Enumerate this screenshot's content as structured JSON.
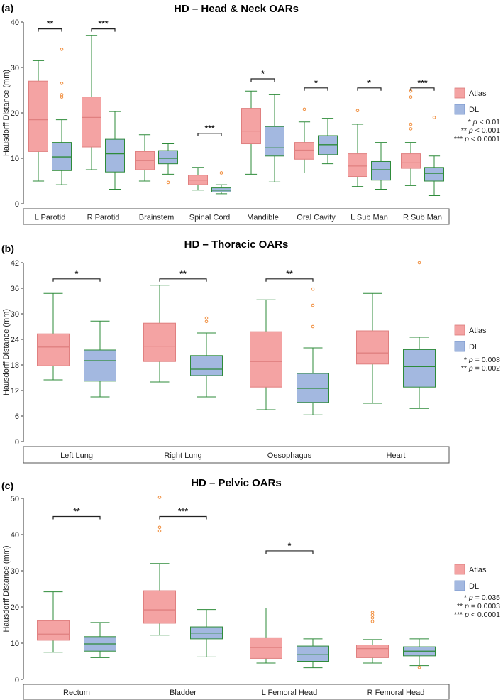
{
  "chart_data": [
    {
      "type": "box",
      "panel_label": "(a)",
      "title": "HD – Head & Neck OARs",
      "ylabel": "Hausdorff Distance (mm)",
      "ylim": [
        0,
        40
      ],
      "yticks": [
        "0",
        "10",
        "20",
        "30",
        "40"
      ],
      "legend": [
        "Atlas",
        "DL"
      ],
      "legend_colors": [
        "#f4a3a3",
        "#a3b8e0"
      ],
      "notes": [
        {
          "stars": "*",
          "p": "p",
          "rest": " < 0.01"
        },
        {
          "stars": "**",
          "p": "p",
          "rest": " < 0.001"
        },
        {
          "stars": "***",
          "p": "p",
          "rest": " < 0.0001"
        }
      ],
      "categories": [
        "L Parotid",
        "R Parotid",
        "Brainstem",
        "Spinal Cord",
        "Mandible",
        "Oral Cavity",
        "L Sub Man",
        "R Sub Man"
      ],
      "series": [
        {
          "name": "Atlas",
          "boxes": [
            {
              "min": 5,
              "q1": 11.5,
              "med": 18.5,
              "q3": 27,
              "max": 31.5,
              "out": []
            },
            {
              "min": 7.5,
              "q1": 12.5,
              "med": 19,
              "q3": 23.5,
              "max": 37,
              "out": []
            },
            {
              "min": 5,
              "q1": 7.5,
              "med": 9.5,
              "q3": 11.5,
              "max": 15.2,
              "out": []
            },
            {
              "min": 3,
              "q1": 4.2,
              "med": 5.2,
              "q3": 6.3,
              "max": 8,
              "out": []
            },
            {
              "min": 6.5,
              "q1": 13.2,
              "med": 16,
              "q3": 21,
              "max": 24.8,
              "out": []
            },
            {
              "min": 6.8,
              "q1": 9.8,
              "med": 11.8,
              "q3": 13.5,
              "max": 18,
              "out": [
                20.8
              ]
            },
            {
              "min": 3.8,
              "q1": 6,
              "med": 8.3,
              "q3": 11,
              "max": 17.5,
              "out": [
                20.5
              ]
            },
            {
              "min": 4,
              "q1": 7.8,
              "med": 9,
              "q3": 11,
              "max": 13.5,
              "out": [
                16.5,
                17.5,
                23.5,
                24.8
              ]
            }
          ]
        },
        {
          "name": "DL",
          "boxes": [
            {
              "min": 4.2,
              "q1": 7.3,
              "med": 10.3,
              "q3": 13.5,
              "max": 18.5,
              "out": [
                23.5,
                24,
                26.5,
                34
              ]
            },
            {
              "min": 3.2,
              "q1": 7,
              "med": 11,
              "q3": 14.2,
              "max": 20.3,
              "out": []
            },
            {
              "min": 6.5,
              "q1": 8.8,
              "med": 10,
              "q3": 11.7,
              "max": 13.2,
              "out": [
                4.7
              ]
            },
            {
              "min": 2.2,
              "q1": 2.6,
              "med": 3,
              "q3": 3.5,
              "max": 4.2,
              "out": [
                6.8
              ]
            },
            {
              "min": 4.8,
              "q1": 10.5,
              "med": 12.3,
              "q3": 17,
              "max": 24,
              "out": []
            },
            {
              "min": 8.8,
              "q1": 10.8,
              "med": 13,
              "q3": 15,
              "max": 18.8,
              "out": []
            },
            {
              "min": 3.2,
              "q1": 5.2,
              "med": 7.5,
              "q3": 9.3,
              "max": 13.5,
              "out": []
            },
            {
              "min": 1.8,
              "q1": 5,
              "med": 6.7,
              "q3": 8,
              "max": 10.5,
              "out": [
                19
              ]
            }
          ]
        }
      ],
      "brackets": [
        {
          "category": 0,
          "label": "**"
        },
        {
          "category": 1,
          "label": "***"
        },
        {
          "category": 3,
          "label": "***"
        },
        {
          "category": 4,
          "label": "*"
        },
        {
          "category": 5,
          "label": "*"
        },
        {
          "category": 6,
          "label": "*"
        },
        {
          "category": 7,
          "label": "***"
        }
      ]
    },
    {
      "type": "box",
      "panel_label": "(b)",
      "title": "HD – Thoracic OARs",
      "ylabel": "Hausdorff Distance (mm)",
      "ylim": [
        0,
        42
      ],
      "yticks": [
        "0",
        "6",
        "12",
        "18",
        "24",
        "30",
        "36",
        "42"
      ],
      "legend": [
        "Atlas",
        "DL"
      ],
      "legend_colors": [
        "#f4a3a3",
        "#a3b8e0"
      ],
      "notes": [
        {
          "stars": "*",
          "p": "p",
          "rest": " = 0.008"
        },
        {
          "stars": "**",
          "p": "p",
          "rest": " = 0.002"
        }
      ],
      "categories": [
        "Left Lung",
        "Right Lung",
        "Oesophagus",
        "Heart"
      ],
      "series": [
        {
          "name": "Atlas",
          "boxes": [
            {
              "min": 14.5,
              "q1": 17.8,
              "med": 22.2,
              "q3": 25.3,
              "max": 34.8,
              "out": []
            },
            {
              "min": 14,
              "q1": 18.8,
              "med": 22.4,
              "q3": 27.8,
              "max": 36.7,
              "out": []
            },
            {
              "min": 7.5,
              "q1": 12.8,
              "med": 18.8,
              "q3": 25.8,
              "max": 33.3,
              "out": []
            },
            {
              "min": 9,
              "q1": 18.2,
              "med": 20.8,
              "q3": 26,
              "max": 34.8,
              "out": []
            }
          ]
        },
        {
          "name": "DL",
          "boxes": [
            {
              "min": 10.5,
              "q1": 14.2,
              "med": 19,
              "q3": 21.5,
              "max": 28.3,
              "out": []
            },
            {
              "min": 10.5,
              "q1": 15.5,
              "med": 17,
              "q3": 20.2,
              "max": 25.5,
              "out": [
                28.2,
                29
              ]
            },
            {
              "min": 6.3,
              "q1": 9.2,
              "med": 12.5,
              "q3": 16,
              "max": 22,
              "out": [
                27,
                32,
                35.8
              ]
            },
            {
              "min": 7.8,
              "q1": 12.8,
              "med": 17.6,
              "q3": 21.6,
              "max": 24.5,
              "out": [
                42
              ]
            }
          ]
        }
      ],
      "brackets": [
        {
          "category": 0,
          "label": "*"
        },
        {
          "category": 1,
          "label": "**"
        },
        {
          "category": 2,
          "label": "**"
        }
      ]
    },
    {
      "type": "box",
      "panel_label": "(c)",
      "title": "HD – Pelvic OARs",
      "ylabel": "Hausdorff Distance (mm)",
      "ylim": [
        0,
        50
      ],
      "yticks": [
        "0",
        "10",
        "20",
        "30",
        "40",
        "50"
      ],
      "legend": [
        "Atlas",
        "DL"
      ],
      "legend_colors": [
        "#f4a3a3",
        "#a3b8e0"
      ],
      "notes": [
        {
          "stars": "*",
          "p": "p",
          "rest": " = 0.035"
        },
        {
          "stars": "**",
          "p": "p",
          "rest": " = 0.0003"
        },
        {
          "stars": "***",
          "p": "p",
          "rest": " < 0.0001"
        }
      ],
      "categories": [
        "Rectum",
        "Bladder",
        "L Femoral Head",
        "R Femoral Head"
      ],
      "series": [
        {
          "name": "Atlas",
          "boxes": [
            {
              "min": 7.5,
              "q1": 10.8,
              "med": 12.5,
              "q3": 16.2,
              "max": 24.2,
              "out": []
            },
            {
              "min": 12.2,
              "q1": 15.5,
              "med": 19.2,
              "q3": 24.5,
              "max": 32,
              "out": [
                41,
                42,
                50.3
              ]
            },
            {
              "min": 4.5,
              "q1": 5.8,
              "med": 8.8,
              "q3": 11.5,
              "max": 19.7,
              "out": []
            },
            {
              "min": 4.5,
              "q1": 6,
              "med": 8.5,
              "q3": 9.5,
              "max": 11,
              "out": [
                16,
                17,
                17.8,
                18.5
              ]
            }
          ]
        },
        {
          "name": "DL",
          "boxes": [
            {
              "min": 6,
              "q1": 7.8,
              "med": 9.8,
              "q3": 11.8,
              "max": 15.7,
              "out": []
            },
            {
              "min": 6.2,
              "q1": 11.2,
              "med": 12.8,
              "q3": 14.5,
              "max": 19.3,
              "out": []
            },
            {
              "min": 3.2,
              "q1": 5,
              "med": 6.8,
              "q3": 9.2,
              "max": 11.2,
              "out": []
            },
            {
              "min": 3.8,
              "q1": 6.5,
              "med": 7.8,
              "q3": 9,
              "max": 11.2,
              "out": [
                3.3
              ]
            }
          ]
        }
      ],
      "brackets": [
        {
          "category": 0,
          "label": "**"
        },
        {
          "category": 1,
          "label": "***"
        },
        {
          "category": 2,
          "label": "*"
        }
      ]
    }
  ]
}
